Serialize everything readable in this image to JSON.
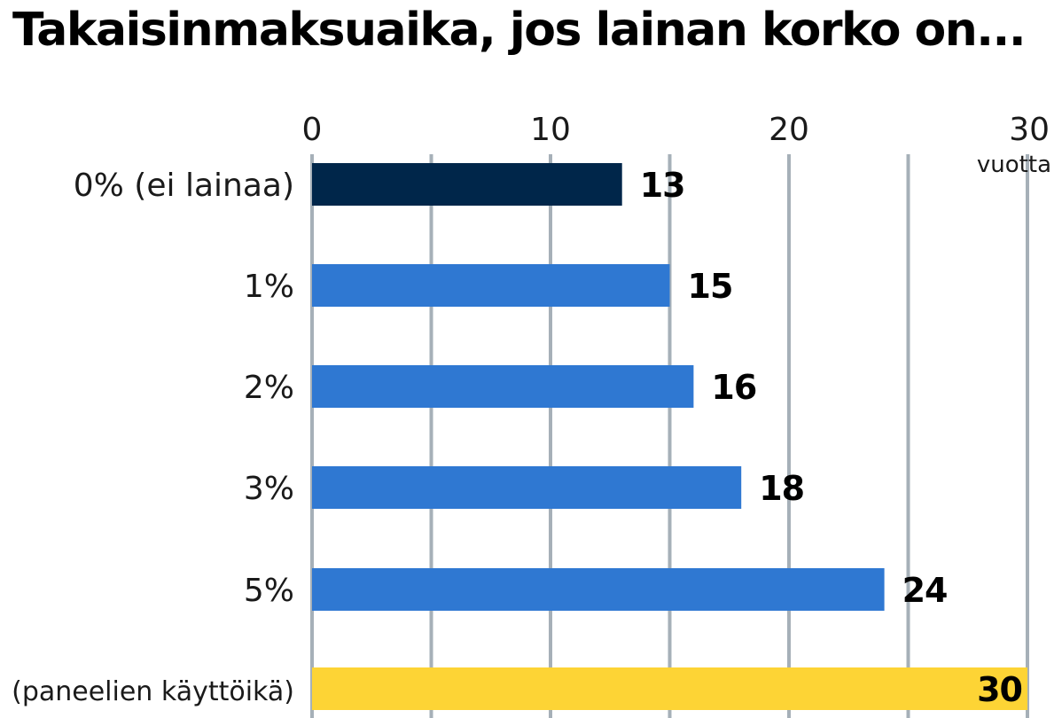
{
  "chart_data": {
    "type": "bar",
    "orientation": "horizontal",
    "title": "Takaisinmaksuaika, jos lainan korko on...",
    "x_unit_label": "vuotta",
    "xlim": [
      0,
      30
    ],
    "x_ticks": [
      0,
      10,
      20,
      30
    ],
    "grid": true,
    "categories": [
      "0% (ei lainaa)",
      "1%",
      "2%",
      "3%",
      "5%",
      "(paneelien käyttöikä)"
    ],
    "values": [
      13,
      15,
      16,
      18,
      24,
      30
    ],
    "value_labels": [
      "13",
      "15",
      "16",
      "18",
      "24",
      "30"
    ],
    "bar_colors": [
      "#00264a",
      "#2f78d2",
      "#2f78d2",
      "#2f78d2",
      "#2f78d2",
      "#fdd435"
    ]
  }
}
